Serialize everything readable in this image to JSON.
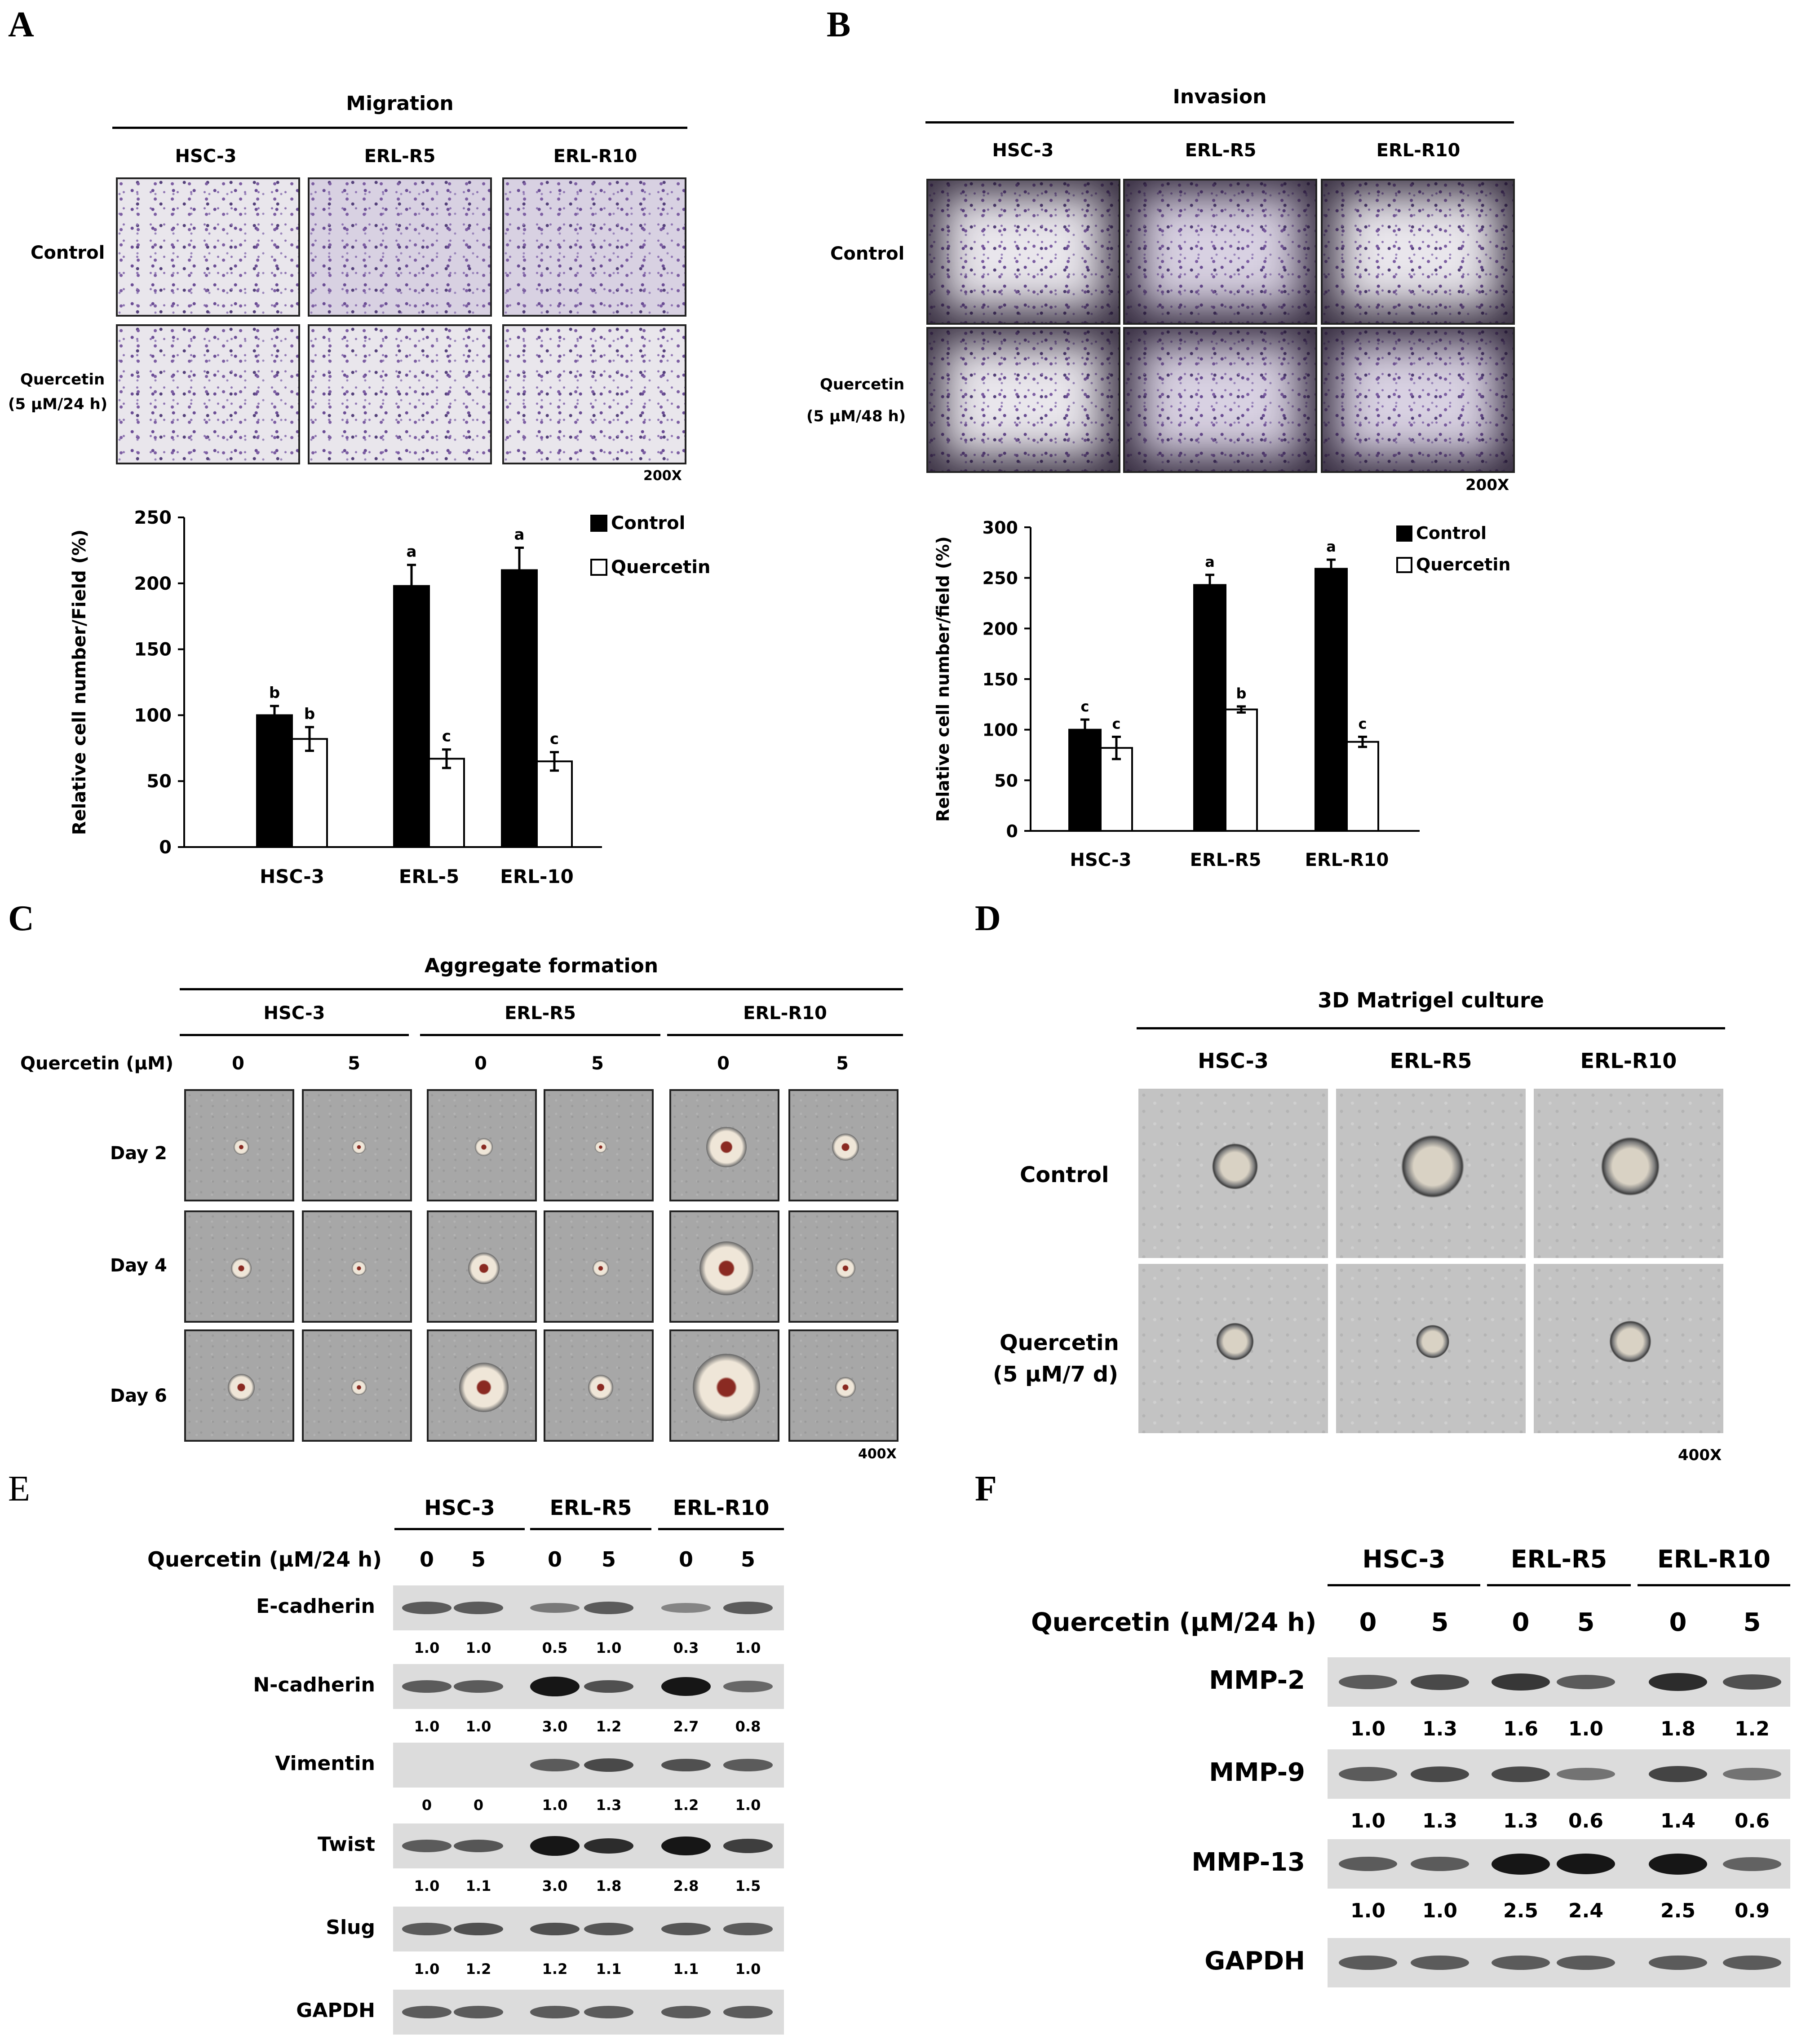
{
  "panels": {
    "A": "A",
    "B": "B",
    "C": "C",
    "D": "D",
    "E": "E",
    "F": "F"
  },
  "panelA": {
    "title": "Migration",
    "cols": [
      "HSC-3",
      "ERL-R5",
      "ERL-R10"
    ],
    "rows": [
      "Control",
      "Quercetin",
      "(5 μM/24 h)"
    ],
    "magnification": "200X"
  },
  "panelB": {
    "title": "Invasion",
    "cols": [
      "HSC-3",
      "ERL-R5",
      "ERL-R10"
    ],
    "rows": [
      "Control",
      "Quercetin",
      "(5 μM/48 h)"
    ],
    "magnification": "200X"
  },
  "panelC": {
    "title": "Aggregate formation",
    "cols": [
      "HSC-3",
      "ERL-R5",
      "ERL-R10"
    ],
    "dose_label": "Quercetin (μM)",
    "doses": [
      "0",
      "5",
      "0",
      "5",
      "0",
      "5"
    ],
    "rows": [
      "Day 2",
      "Day 4",
      "Day 6"
    ],
    "magnification": "400X"
  },
  "panelD": {
    "title": "3D Matrigel culture",
    "cols": [
      "HSC-3",
      "ERL-R5",
      "ERL-R10"
    ],
    "rows": [
      "Control",
      "Quercetin",
      "(5 μM/7 d)"
    ],
    "magnification": "400X"
  },
  "panelE": {
    "cols": [
      "HSC-3",
      "ERL-R5",
      "ERL-R10"
    ],
    "dose_label": "Quercetin (μM/24 h)",
    "doses": [
      "0",
      "5",
      "0",
      "5",
      "0",
      "5"
    ],
    "proteins": [
      {
        "name": "E-cadherin",
        "values": [
          "1.0",
          "1.0",
          "0.5",
          "1.0",
          "0.3",
          "1.0"
        ]
      },
      {
        "name": "N-cadherin",
        "values": [
          "1.0",
          "1.0",
          "3.0",
          "1.2",
          "2.7",
          "0.8"
        ]
      },
      {
        "name": "Vimentin",
        "values": [
          "0",
          "0",
          "1.0",
          "1.3",
          "1.2",
          "1.0"
        ]
      },
      {
        "name": "Twist",
        "values": [
          "1.0",
          "1.1",
          "3.0",
          "1.8",
          "2.8",
          "1.5"
        ]
      },
      {
        "name": "Slug",
        "values": [
          "1.0",
          "1.2",
          "1.2",
          "1.1",
          "1.1",
          "1.0"
        ]
      },
      {
        "name": "GAPDH",
        "values": []
      }
    ]
  },
  "panelF": {
    "cols": [
      "HSC-3",
      "ERL-R5",
      "ERL-R10"
    ],
    "dose_label": "Quercetin (μM/24 h)",
    "doses": [
      "0",
      "5",
      "0",
      "5",
      "0",
      "5"
    ],
    "proteins": [
      {
        "name": "MMP-2",
        "values": [
          "1.0",
          "1.3",
          "1.6",
          "1.0",
          "1.8",
          "1.2"
        ]
      },
      {
        "name": "MMP-9",
        "values": [
          "1.0",
          "1.3",
          "1.3",
          "0.6",
          "1.4",
          "0.6"
        ]
      },
      {
        "name": "MMP-13",
        "values": [
          "1.0",
          "1.0",
          "2.5",
          "2.4",
          "2.5",
          "0.9"
        ]
      },
      {
        "name": "GAPDH",
        "values": []
      }
    ]
  },
  "chart_data": [
    {
      "type": "bar",
      "panel": "A",
      "categories": [
        "HSC-3",
        "ERL-5",
        "ERL-10"
      ],
      "ylabel": "Relative cell number/Field (%)",
      "ylim": [
        0,
        250
      ],
      "yticks": [
        0,
        50,
        100,
        150,
        200,
        250
      ],
      "legend": "top-right",
      "series": [
        {
          "name": "Control",
          "color": "#000000",
          "values": [
            100,
            198,
            210
          ],
          "errors": [
            7,
            16,
            17
          ],
          "letters": [
            "b",
            "a",
            "a"
          ]
        },
        {
          "name": "Quercetin",
          "color": "#ffffff",
          "values": [
            82,
            67,
            65
          ],
          "errors": [
            9,
            7,
            7
          ],
          "letters": [
            "b",
            "c",
            "c"
          ]
        }
      ]
    },
    {
      "type": "bar",
      "panel": "B",
      "categories": [
        "HSC-3",
        "ERL-R5",
        "ERL-R10"
      ],
      "ylabel": "Relative cell number/field (%)",
      "ylim": [
        0,
        300
      ],
      "yticks": [
        0,
        50,
        100,
        150,
        200,
        250,
        300
      ],
      "legend": "top-right",
      "series": [
        {
          "name": "Control",
          "color": "#000000",
          "values": [
            100,
            243,
            259
          ],
          "errors": [
            10,
            10,
            9
          ],
          "letters": [
            "c",
            "a",
            "a"
          ]
        },
        {
          "name": "Quercetin",
          "color": "#ffffff",
          "values": [
            82,
            120,
            88
          ],
          "errors": [
            11,
            3,
            5
          ],
          "letters": [
            "c",
            "b",
            "c"
          ]
        }
      ]
    }
  ]
}
